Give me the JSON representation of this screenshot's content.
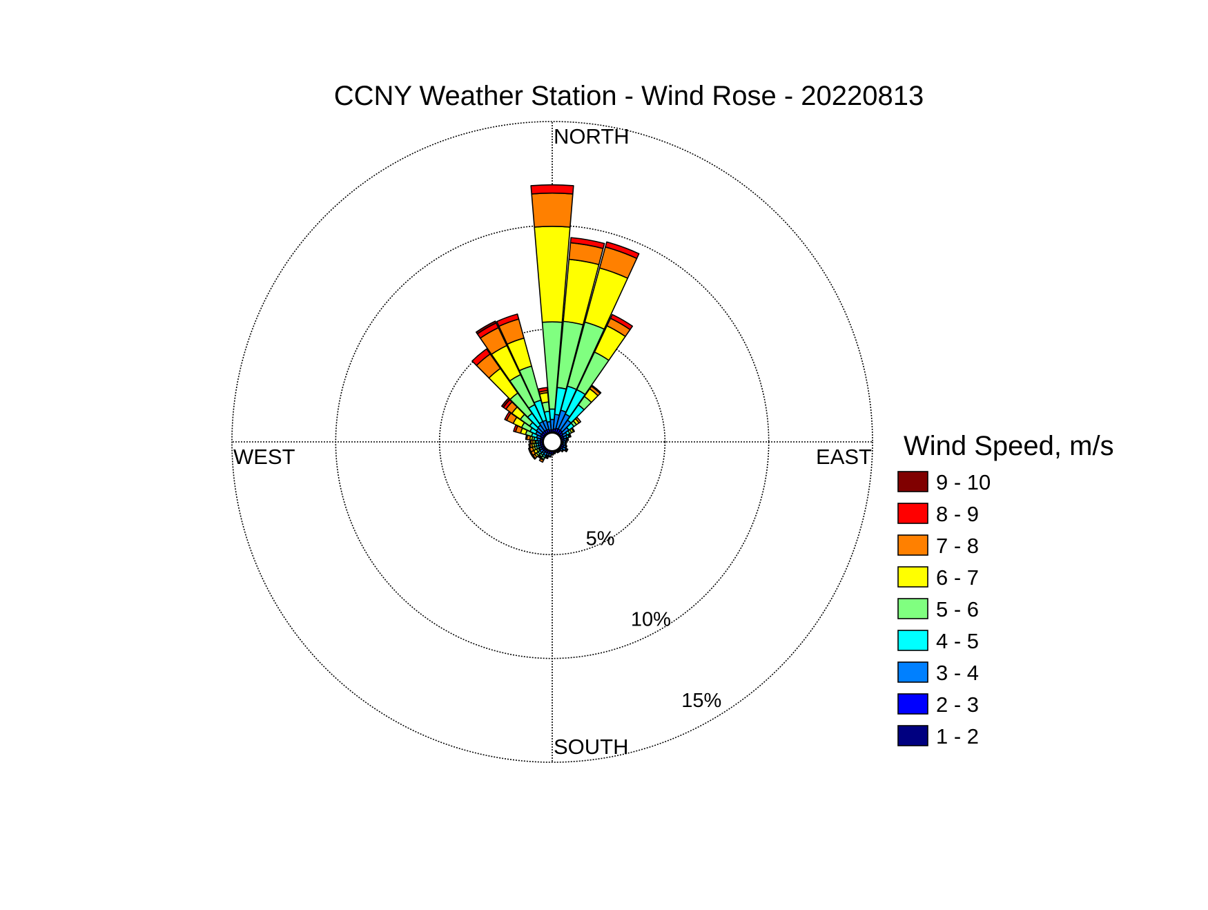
{
  "chart_data": {
    "type": "wind-rose",
    "title": "CCNY Weather Station - Wind Rose - 20220813",
    "direction_labels": {
      "north": "NORTH",
      "south": "SOUTH",
      "east": "EAST",
      "west": "WEST"
    },
    "radial_ticks": [
      {
        "value": 5,
        "label": "5%"
      },
      {
        "value": 10,
        "label": "10%"
      },
      {
        "value": 15,
        "label": "15%"
      }
    ],
    "rmax": 15,
    "legend_title": "Wind Speed, m/s",
    "speed_bins": [
      {
        "label": "1 - 2",
        "color": "#000080"
      },
      {
        "label": "2 - 3",
        "color": "#0000ff"
      },
      {
        "label": "3 - 4",
        "color": "#0080ff"
      },
      {
        "label": "4 - 5",
        "color": "#00ffff"
      },
      {
        "label": "5 - 6",
        "color": "#80ff80"
      },
      {
        "label": "6 - 7",
        "color": "#ffff00"
      },
      {
        "label": "7 - 8",
        "color": "#ff8000"
      },
      {
        "label": "8 - 9",
        "color": "#ff0000"
      },
      {
        "label": "9 - 10",
        "color": "#800000"
      }
    ],
    "sector_width_deg": 10,
    "sectors": [
      {
        "direction": 0,
        "values": [
          0.05,
          0.1,
          0.5,
          0.5,
          4.2,
          4.6,
          1.6,
          0.4,
          0
        ]
      },
      {
        "direction": 10,
        "values": [
          0.05,
          0.15,
          0.7,
          1.3,
          3.2,
          3.0,
          0.8,
          0.25,
          0
        ]
      },
      {
        "direction": 20,
        "values": [
          0.05,
          0.2,
          0.9,
          1.2,
          3.2,
          2.7,
          1.05,
          0.25,
          0
        ]
      },
      {
        "direction": 30,
        "values": [
          0.05,
          0.2,
          0.8,
          1.3,
          2.0,
          1.4,
          0.4,
          0.2,
          0
        ]
      },
      {
        "direction": 40,
        "values": [
          0.05,
          0.2,
          0.6,
          0.9,
          0.5,
          0.45,
          0.15,
          0.05,
          0
        ]
      },
      {
        "direction": 50,
        "values": [
          0.05,
          0.15,
          0.35,
          0.3,
          0.15,
          0.15,
          0.1,
          0,
          0
        ]
      },
      {
        "direction": 60,
        "values": [
          0.05,
          0.1,
          0.2,
          0.15,
          0.1,
          0.1,
          0.05,
          0,
          0
        ]
      },
      {
        "direction": 70,
        "values": [
          0.05,
          0.1,
          0.15,
          0.1,
          0.05,
          0.05,
          0,
          0,
          0
        ]
      },
      {
        "direction": 80,
        "values": [
          0.05,
          0.1,
          0.1,
          0.05,
          0.05,
          0,
          0,
          0,
          0
        ]
      },
      {
        "direction": 90,
        "values": [
          0.05,
          0.05,
          0.1,
          0.05,
          0,
          0,
          0,
          0,
          0
        ]
      },
      {
        "direction": 100,
        "values": [
          0.05,
          0.05,
          0.1,
          0.05,
          0,
          0,
          0,
          0,
          0
        ]
      },
      {
        "direction": 110,
        "values": [
          0.05,
          0.1,
          0.1,
          0.05,
          0,
          0,
          0,
          0,
          0
        ]
      },
      {
        "direction": 120,
        "values": [
          0.05,
          0.1,
          0.15,
          0.05,
          0.05,
          0,
          0,
          0,
          0
        ]
      },
      {
        "direction": 130,
        "values": [
          0.05,
          0.05,
          0.1,
          0.05,
          0,
          0,
          0,
          0,
          0
        ]
      },
      {
        "direction": 140,
        "values": [
          0.05,
          0.05,
          0.05,
          0,
          0,
          0,
          0,
          0,
          0
        ]
      },
      {
        "direction": 150,
        "values": [
          0.05,
          0.05,
          0.05,
          0,
          0,
          0,
          0,
          0,
          0
        ]
      },
      {
        "direction": 160,
        "values": [
          0.05,
          0.05,
          0,
          0,
          0,
          0,
          0,
          0,
          0
        ]
      },
      {
        "direction": 170,
        "values": [
          0.05,
          0.05,
          0.05,
          0,
          0,
          0,
          0,
          0,
          0
        ]
      },
      {
        "direction": 180,
        "values": [
          0.05,
          0.1,
          0.05,
          0,
          0,
          0,
          0,
          0,
          0
        ]
      },
      {
        "direction": 190,
        "values": [
          0.05,
          0.1,
          0.1,
          0.05,
          0,
          0,
          0,
          0,
          0
        ]
      },
      {
        "direction": 200,
        "values": [
          0.05,
          0.1,
          0.1,
          0.05,
          0.05,
          0.05,
          0,
          0,
          0
        ]
      },
      {
        "direction": 210,
        "values": [
          0.05,
          0.1,
          0.15,
          0.1,
          0.1,
          0.05,
          0.1,
          0,
          0
        ]
      },
      {
        "direction": 220,
        "values": [
          0.05,
          0.1,
          0.1,
          0.1,
          0.1,
          0.05,
          0.05,
          0,
          0
        ]
      },
      {
        "direction": 230,
        "values": [
          0.05,
          0.1,
          0.15,
          0.1,
          0.1,
          0.1,
          0.1,
          0.05,
          0
        ]
      },
      {
        "direction": 240,
        "values": [
          0.05,
          0.1,
          0.1,
          0.05,
          0.1,
          0.15,
          0.15,
          0.05,
          0
        ]
      },
      {
        "direction": 250,
        "values": [
          0.05,
          0.1,
          0.1,
          0.1,
          0.1,
          0.1,
          0.15,
          0.05,
          0
        ]
      },
      {
        "direction": 260,
        "values": [
          0.05,
          0.1,
          0.1,
          0.1,
          0.1,
          0.1,
          0.1,
          0.05,
          0
        ]
      },
      {
        "direction": 270,
        "values": [
          0.05,
          0.1,
          0.1,
          0.1,
          0.05,
          0.1,
          0.1,
          0.05,
          0
        ]
      },
      {
        "direction": 280,
        "values": [
          0.05,
          0.1,
          0.15,
          0.15,
          0.1,
          0.1,
          0.15,
          0.05,
          0
        ]
      },
      {
        "direction": 290,
        "values": [
          0.05,
          0.1,
          0.2,
          0.25,
          0.3,
          0.25,
          0.25,
          0.1,
          0
        ]
      },
      {
        "direction": 300,
        "values": [
          0.05,
          0.15,
          0.25,
          0.3,
          0.45,
          0.45,
          0.35,
          0.1,
          0
        ]
      },
      {
        "direction": 310,
        "values": [
          0.05,
          0.15,
          0.3,
          0.4,
          0.55,
          0.5,
          0.35,
          0.15,
          0.1
        ]
      },
      {
        "direction": 320,
        "values": [
          0.05,
          0.15,
          0.35,
          0.7,
          1.2,
          1.45,
          0.85,
          0.3,
          0
        ]
      },
      {
        "direction": 330,
        "values": [
          0.05,
          0.15,
          0.45,
          0.9,
          1.6,
          1.55,
          0.95,
          0.25,
          0.1
        ]
      },
      {
        "direction": 340,
        "values": [
          0.05,
          0.15,
          0.45,
          1.0,
          1.7,
          1.4,
          0.95,
          0.25,
          0
        ]
      },
      {
        "direction": 350,
        "values": [
          0.05,
          0.1,
          0.4,
          0.5,
          0.45,
          0.45,
          0.1,
          0.15,
          0
        ]
      }
    ]
  }
}
